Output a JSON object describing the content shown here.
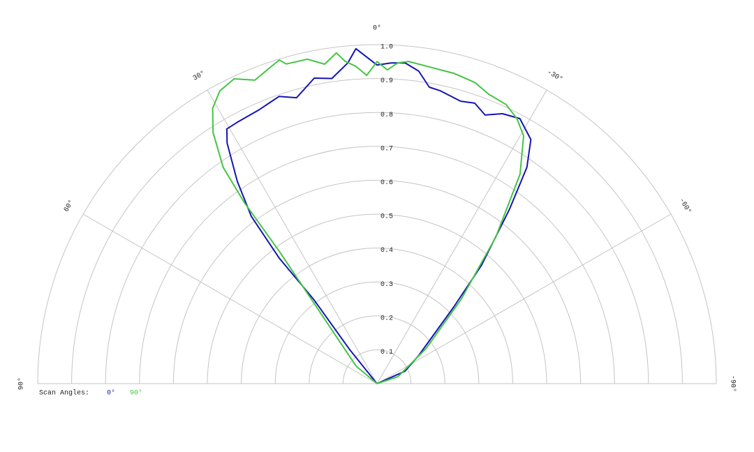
{
  "chart_data": {
    "type": "polar",
    "thetalim": [
      -90,
      90
    ],
    "thetaticks": [
      {
        "value": 90,
        "label": "90°"
      },
      {
        "value": 60,
        "label": "60°"
      },
      {
        "value": 30,
        "label": "30°"
      },
      {
        "value": 0,
        "label": "0°"
      },
      {
        "value": -30,
        "label": "-30°"
      },
      {
        "value": -60,
        "label": "-60°"
      },
      {
        "value": -90,
        "label": "-90°"
      }
    ],
    "rlim": [
      0,
      1
    ],
    "rticks": [
      0.1,
      0.2,
      0.3,
      0.4,
      0.5,
      0.6,
      0.7,
      0.8,
      0.9,
      {
        "value": 1,
        "label": "1.0"
      }
    ],
    "legend_title": "Scan Angles:",
    "series": [
      {
        "name": "0°",
        "color": "#1414b4",
        "theta": [
          -70,
          -66,
          -56,
          -45,
          -41.4,
          -37.2,
          -34.7,
          -32.2,
          -28.3,
          -24.9,
          -21.9,
          -19.2,
          -16.5,
          -12.1,
          -10,
          -7.6,
          -5,
          -2.5,
          0,
          3.6,
          5.2,
          8.4,
          11.6,
          15.7,
          18.8,
          23.4,
          28.1,
          30.5,
          31.9,
          34.6,
          36.9,
          37.9,
          36.9,
          38.7,
          50
        ],
        "values": [
          0,
          0.09,
          0.148,
          0.32,
          0.466,
          0.646,
          0.776,
          0.851,
          0.888,
          0.878,
          0.854,
          0.876,
          0.869,
          0.884,
          0.888,
          0.93,
          0.95,
          0.947,
          0.94,
          0.99,
          0.95,
          0.91,
          0.92,
          0.876,
          0.895,
          0.879,
          0.874,
          0.872,
          0.836,
          0.725,
          0.617,
          0.469,
          0.309,
          0.13,
          0
        ]
      },
      {
        "name": "90°",
        "color": "#44c444",
        "theta": [
          -75,
          -71.6,
          -54.5,
          -45,
          -39,
          -34.3,
          -30.6,
          -27.8,
          -24.8,
          -21.1,
          -18,
          -13.9,
          -10,
          -5.6,
          -3.7,
          -1.9,
          0,
          1.9,
          3.8,
          5.6,
          7,
          9.3,
          12.1,
          15.8,
          16.8,
          18.9,
          21.9,
          25.1,
          28.2,
          30.8,
          33.1,
          35.4,
          36.2,
          36.4,
          38.7,
          50,
          50
        ],
        "values": [
          0,
          0.065,
          0.177,
          0.349,
          0.556,
          0.748,
          0.849,
          0.884,
          0.907,
          0.915,
          0.934,
          0.943,
          0.946,
          0.955,
          0.948,
          0.926,
          0.95,
          0.91,
          0.938,
          0.955,
          0.983,
          0.955,
          0.979,
          0.98,
          0.997,
          0.983,
          0.965,
          0.993,
          0.98,
          0.946,
          0.885,
          0.782,
          0.662,
          0.486,
          0.263,
          0.08,
          0
        ]
      }
    ]
  }
}
